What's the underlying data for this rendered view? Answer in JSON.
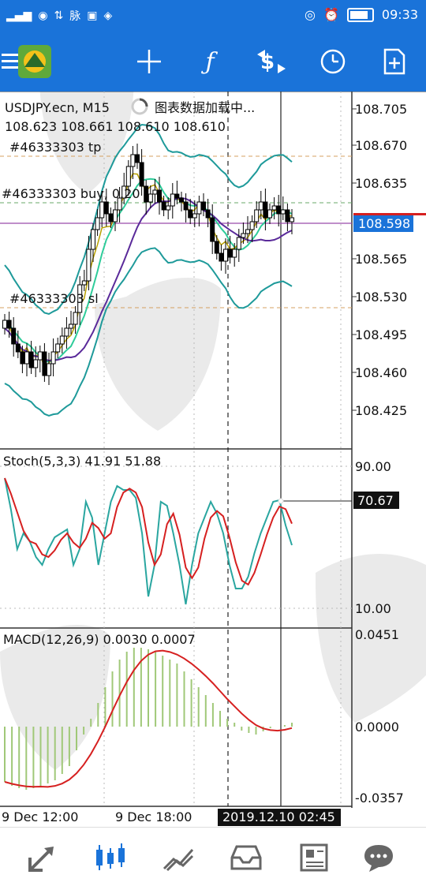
{
  "status": {
    "time": "09:33",
    "left_icons": [
      "signal-icon",
      "app-icon",
      "network-icon",
      "app-icon",
      "image-icon",
      "app-icon"
    ],
    "net_label": "脉"
  },
  "toolbar": {
    "icons": [
      "menu-icon",
      "metatrader-logo",
      "crosshair-icon",
      "function-icon",
      "trade-icon",
      "clock-icon",
      "add-document-icon"
    ]
  },
  "chart": {
    "symbol_label": "USDJPY.ecn, M15",
    "loading_text": "图表数据加载中...",
    "ohlc": "108.623 108.661 108.610 108.610",
    "order_tp_label": "#46333303 tp",
    "order_buy_label": "#46333303 buy, 0.20",
    "order_sl_label": "#46333303 sl",
    "current_price": "108.598",
    "price_labels": [
      "108.705",
      "108.670",
      "108.635",
      "108.565",
      "108.530",
      "108.495",
      "108.460",
      "108.425"
    ],
    "stoch_label": "Stoch(5,3,3) 41.91 51.88",
    "stoch_levels": [
      "90.00",
      "10.00"
    ],
    "stoch_value": "70.67",
    "macd_label": "MACD(12,26,9) 0.0030 0.0007",
    "macd_levels": [
      "0.0451",
      "0.0000",
      "-0.0357"
    ],
    "time_labels": [
      "9 Dec 12:00",
      "9 Dec 18:00"
    ],
    "cursor_time": "2019.12.10 02:45",
    "colors": {
      "bull": "#ffffff",
      "bear": "#000000",
      "bollinger": "#1e9a9a",
      "ma_fast": "#b8a000",
      "ma_mid": "#2ecc9a",
      "ma_slow": "#5a2a9a",
      "stoch_main": "#2aa6a0",
      "stoch_signal": "#d62020",
      "macd_hist": "#a0c878",
      "macd_signal": "#d62020",
      "order_line": "#d4a060",
      "buy_line": "#6aaa6a",
      "current_line": "#9a4aaa"
    }
  },
  "bottom": {
    "icons": [
      "trade-arrows-icon",
      "chart-icon",
      "trending-icon",
      "inbox-icon",
      "news-icon",
      "chat-icon"
    ]
  }
}
